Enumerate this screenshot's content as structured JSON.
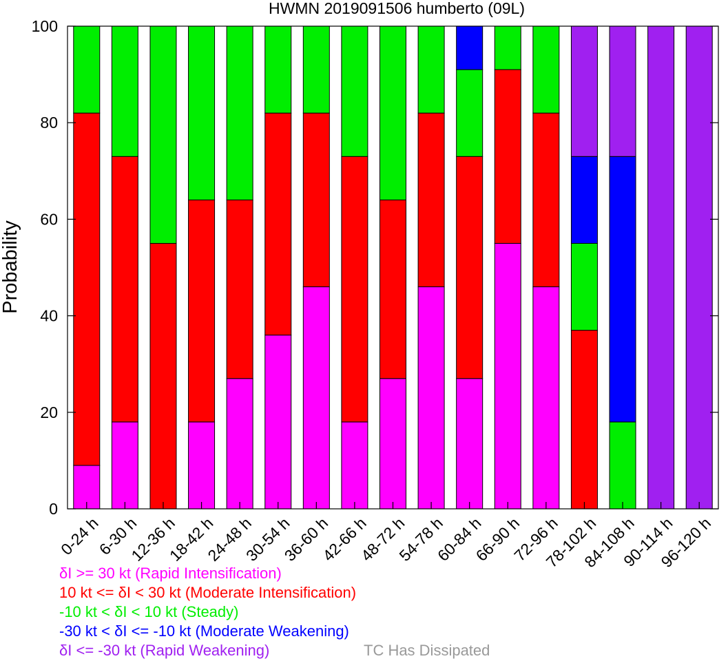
{
  "chart_data": {
    "type": "bar",
    "stacked": true,
    "title": "HWMN 2019091506 humberto (09L)",
    "ylabel": "Probability",
    "xlabel": "",
    "ylim": [
      0,
      100
    ],
    "yticks": [
      0,
      20,
      40,
      60,
      80,
      100
    ],
    "grid": false,
    "legend_placement": "bottom",
    "categories": [
      "0-24 h",
      "6-30 h",
      "12-36 h",
      "18-42 h",
      "24-48 h",
      "30-54 h",
      "36-60 h",
      "42-66 h",
      "48-72 h",
      "54-78 h",
      "60-84 h",
      "66-90 h",
      "72-96 h",
      "78-102 h",
      "84-108 h",
      "90-114 h",
      "96-120 h"
    ],
    "series": [
      {
        "name": "δI >= 30 kt (Rapid Intensification)",
        "color": "#ff00ff",
        "values": [
          9,
          18,
          0,
          18,
          27,
          36,
          46,
          18,
          27,
          46,
          27,
          55,
          46,
          0,
          0,
          0,
          0
        ]
      },
      {
        "name": "10 kt <= δI < 30 kt (Moderate Intensification)",
        "color": "#ff0000",
        "values": [
          73,
          55,
          55,
          46,
          37,
          46,
          36,
          55,
          37,
          36,
          46,
          36,
          36,
          37,
          0,
          0,
          0
        ]
      },
      {
        "name": "-10 kt < δI < 10 kt (Steady)",
        "color": "#00ee00",
        "values": [
          18,
          27,
          45,
          36,
          36,
          18,
          18,
          27,
          36,
          18,
          18,
          9,
          18,
          18,
          18,
          0,
          0
        ]
      },
      {
        "name": "-30 kt < δI <= -10 kt (Moderate Weakening)",
        "color": "#0000ff",
        "values": [
          0,
          0,
          0,
          0,
          0,
          0,
          0,
          0,
          0,
          0,
          9,
          0,
          0,
          18,
          55,
          0,
          0
        ]
      },
      {
        "name": "δI <= -30 kt (Rapid Weakening)",
        "color": "#a020f0",
        "values": [
          0,
          0,
          0,
          0,
          0,
          0,
          0,
          0,
          0,
          0,
          0,
          0,
          0,
          27,
          27,
          100,
          100
        ]
      }
    ],
    "extra_legend": {
      "text": "TC Has Dissipated",
      "color": "#999999"
    }
  }
}
